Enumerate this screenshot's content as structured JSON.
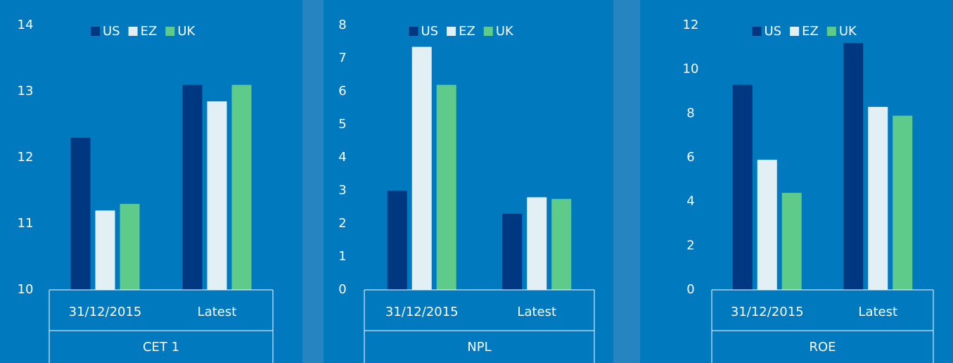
{
  "chart_data": [
    {
      "type": "bar",
      "title": "CET 1",
      "categories": [
        "31/12/2015",
        "Latest"
      ],
      "series": [
        {
          "name": "US",
          "color": "#003781",
          "values": [
            12.3,
            13.1
          ]
        },
        {
          "name": "EZ",
          "color": "#e2eff5",
          "values": [
            11.2,
            12.85
          ]
        },
        {
          "name": "UK",
          "color": "#5ecb8a",
          "values": [
            11.3,
            13.1
          ]
        }
      ],
      "ylim": [
        10,
        14
      ],
      "yticks": [
        10,
        11,
        12,
        13,
        14
      ]
    },
    {
      "type": "bar",
      "title": "NPL",
      "categories": [
        "31/12/2015",
        "Latest"
      ],
      "series": [
        {
          "name": "US",
          "color": "#003781",
          "values": [
            3.0,
            2.3
          ]
        },
        {
          "name": "EZ",
          "color": "#e2eff5",
          "values": [
            7.35,
            2.8
          ]
        },
        {
          "name": "UK",
          "color": "#5ecb8a",
          "values": [
            6.2,
            2.75
          ]
        }
      ],
      "ylim": [
        0,
        8
      ],
      "yticks": [
        0,
        1,
        2,
        3,
        4,
        5,
        6,
        7,
        8
      ]
    },
    {
      "type": "bar",
      "title": "ROE",
      "categories": [
        "31/12/2015",
        "Latest"
      ],
      "series": [
        {
          "name": "US",
          "color": "#003781",
          "values": [
            9.3,
            11.2
          ]
        },
        {
          "name": "EZ",
          "color": "#e2eff5",
          "values": [
            5.9,
            8.3
          ]
        },
        {
          "name": "UK",
          "color": "#5ecb8a",
          "values": [
            4.4,
            7.9
          ]
        }
      ],
      "ylim": [
        0,
        12
      ],
      "yticks": [
        0,
        2,
        4,
        6,
        8,
        10,
        12
      ]
    }
  ]
}
